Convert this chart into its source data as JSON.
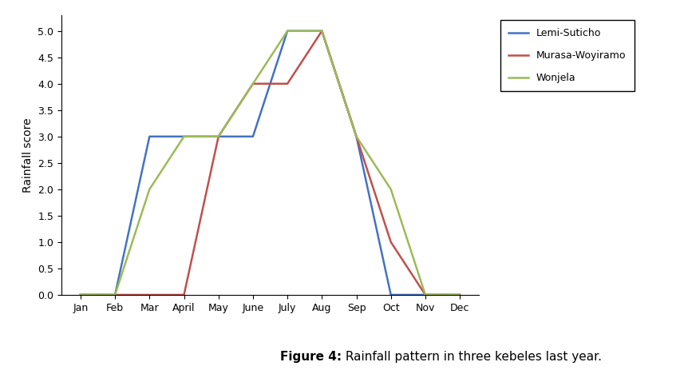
{
  "months": [
    "Jan",
    "Feb",
    "Mar",
    "April",
    "May",
    "June",
    "July",
    "Aug",
    "Sep",
    "Oct",
    "Nov",
    "Dec"
  ],
  "lemi_suticho": [
    0,
    0,
    3,
    3,
    3,
    3,
    5,
    5,
    3,
    0,
    0,
    0
  ],
  "murasa_woyiramo": [
    0,
    0,
    0,
    0,
    3,
    4,
    4,
    5,
    3,
    1,
    0,
    0
  ],
  "wonjela": [
    0,
    0,
    2,
    3,
    3,
    4,
    5,
    5,
    3,
    2,
    0,
    0
  ],
  "lemi_color": "#4472C4",
  "murasa_color": "#C0504D",
  "wonjela_color": "#9BBB59",
  "ylabel": "Rainfall score",
  "ylim": [
    0,
    5.3
  ],
  "yticks": [
    0.0,
    0.5,
    1.0,
    1.5,
    2.0,
    2.5,
    3.0,
    3.5,
    4.0,
    4.5,
    5.0
  ],
  "legend_labels": [
    "Lemi-Suticho",
    "Murasa-Woyiramo",
    "Wonjela"
  ],
  "caption_bold": "Figure 4:",
  "caption_regular": " Rainfall pattern in three kebeles last year.",
  "linewidth": 1.8,
  "tick_fontsize": 9,
  "label_fontsize": 10,
  "legend_fontsize": 9,
  "caption_fontsize": 11
}
